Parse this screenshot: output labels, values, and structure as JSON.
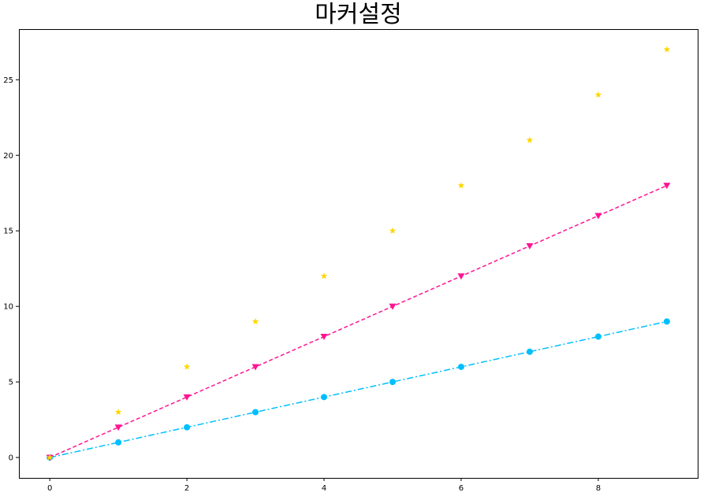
{
  "chart_data": {
    "type": "line",
    "title": "마커설정",
    "xlabel": "",
    "ylabel": "",
    "xlim": [
      -0.45,
      9.45
    ],
    "ylim": [
      -1.35,
      28.35
    ],
    "xticks": [
      0,
      2,
      4,
      6,
      8
    ],
    "yticks": [
      0,
      5,
      10,
      15,
      20,
      25
    ],
    "grid": false,
    "x": [
      0,
      1,
      2,
      3,
      4,
      5,
      6,
      7,
      8,
      9
    ],
    "series": [
      {
        "values": [
          0,
          1,
          2,
          3,
          4,
          5,
          6,
          7,
          8,
          9
        ],
        "color": "#00bfff",
        "marker": "circle",
        "linestyle": "dashdot"
      },
      {
        "values": [
          0,
          2,
          4,
          6,
          8,
          10,
          12,
          14,
          16,
          18
        ],
        "color": "#ff1493",
        "marker": "triangle-down",
        "linestyle": "dashed"
      },
      {
        "values": [
          0,
          3,
          6,
          9,
          12,
          15,
          18,
          21,
          24,
          27
        ],
        "color": "#ffd700",
        "marker": "star",
        "linestyle": "none"
      }
    ]
  }
}
